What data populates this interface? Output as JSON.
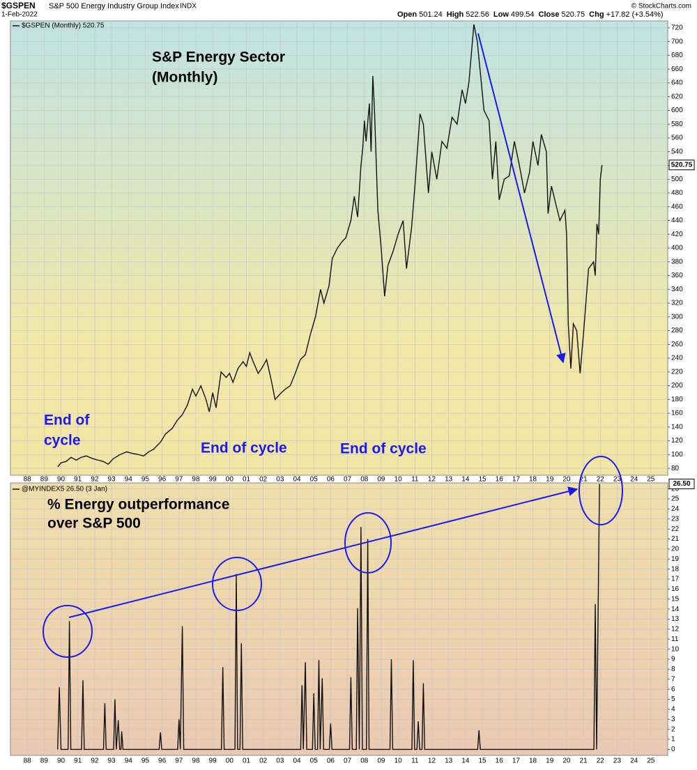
{
  "header": {
    "symbol": "$GSPEN",
    "name": "S&P 500 Energy Industry Group Index",
    "exchange": "INDX",
    "date": "1-Feb-2022",
    "quote": [
      [
        "Open",
        "501.24"
      ],
      [
        "High",
        "522.56"
      ],
      [
        "Low",
        "499.54"
      ],
      [
        "Close",
        "520.75"
      ],
      [
        "Chg",
        "+17.82 (+3.54%)"
      ]
    ],
    "credit": "© StockCharts.com"
  },
  "chart_data": [
    {
      "type": "line",
      "legend": "$GSPEN (Monthly) 520.75",
      "last_label": "520.75",
      "color": "#111111",
      "title": "S&P Energy Sector",
      "subtitle": "(Monthly)",
      "annotations": [
        "End of",
        "cycle",
        "End of cycle",
        "End of cycle"
      ],
      "xlim": [
        1987,
        2026
      ],
      "ylim": [
        70,
        730
      ],
      "grid": true,
      "xticks": [
        {
          "value": 1988,
          "label": "88"
        },
        {
          "value": 1989,
          "label": "89"
        },
        {
          "value": 1990,
          "label": "90"
        },
        {
          "value": 1991,
          "label": "91"
        },
        {
          "value": 1992,
          "label": "92"
        },
        {
          "value": 1993,
          "label": "93"
        },
        {
          "value": 1994,
          "label": "94"
        },
        {
          "value": 1995,
          "label": "95"
        },
        {
          "value": 1996,
          "label": "96"
        },
        {
          "value": 1997,
          "label": "97"
        },
        {
          "value": 1998,
          "label": "98"
        },
        {
          "value": 1999,
          "label": "99"
        },
        {
          "value": 2000,
          "label": "00"
        },
        {
          "value": 2001,
          "label": "01"
        },
        {
          "value": 2002,
          "label": "02"
        },
        {
          "value": 2003,
          "label": "03"
        },
        {
          "value": 2004,
          "label": "04"
        },
        {
          "value": 2005,
          "label": "05"
        },
        {
          "value": 2006,
          "label": "06"
        },
        {
          "value": 2007,
          "label": "07"
        },
        {
          "value": 2008,
          "label": "08"
        },
        {
          "value": 2009,
          "label": "09"
        },
        {
          "value": 2010,
          "label": "10"
        },
        {
          "value": 2011,
          "label": "11"
        },
        {
          "value": 2012,
          "label": "12"
        },
        {
          "value": 2013,
          "label": "13"
        },
        {
          "value": 2014,
          "label": "14"
        },
        {
          "value": 2015,
          "label": "15"
        },
        {
          "value": 2016,
          "label": "16"
        },
        {
          "value": 2017,
          "label": "17"
        },
        {
          "value": 2018,
          "label": "18"
        },
        {
          "value": 2019,
          "label": "19"
        },
        {
          "value": 2020,
          "label": "20"
        },
        {
          "value": 2021,
          "label": "21"
        },
        {
          "value": 2022,
          "label": "22"
        },
        {
          "value": 2023,
          "label": "23"
        },
        {
          "value": 2024,
          "label": "24"
        },
        {
          "value": 2025,
          "label": "25"
        }
      ],
      "yticks": [
        80,
        100,
        120,
        140,
        160,
        180,
        200,
        220,
        240,
        260,
        280,
        300,
        320,
        340,
        360,
        380,
        400,
        420,
        440,
        460,
        480,
        500,
        520,
        540,
        560,
        580,
        600,
        620,
        640,
        660,
        680,
        700,
        720
      ],
      "x": [
        1989.8,
        1990.0,
        1990.3,
        1990.6,
        1990.9,
        1991.2,
        1991.5,
        1991.9,
        1992.2,
        1992.5,
        1992.8,
        1993.1,
        1993.5,
        1993.9,
        1994.2,
        1994.6,
        1994.9,
        1995.2,
        1995.5,
        1995.9,
        1996.2,
        1996.6,
        1996.9,
        1997.2,
        1997.5,
        1997.8,
        1998.0,
        1998.3,
        1998.6,
        1998.8,
        1999.0,
        1999.2,
        1999.5,
        1999.8,
        2000.0,
        2000.2,
        2000.5,
        2000.8,
        2001.0,
        2001.2,
        2001.4,
        2001.7,
        2001.9,
        2002.2,
        2002.5,
        2002.7,
        2003.0,
        2003.3,
        2003.6,
        2003.9,
        2004.2,
        2004.5,
        2004.8,
        2005.1,
        2005.4,
        2005.6,
        2005.9,
        2006.1,
        2006.4,
        2006.7,
        2006.9,
        2007.2,
        2007.4,
        2007.6,
        2007.8,
        2007.9,
        2008.0,
        2008.1,
        2008.3,
        2008.4,
        2008.5,
        2008.6,
        2008.8,
        2009.0,
        2009.2,
        2009.4,
        2009.7,
        2010.0,
        2010.3,
        2010.5,
        2010.8,
        2011.0,
        2011.3,
        2011.5,
        2011.8,
        2012.0,
        2012.3,
        2012.6,
        2012.9,
        2013.2,
        2013.5,
        2013.8,
        2014.0,
        2014.2,
        2014.5,
        2014.7,
        2014.9,
        2015.1,
        2015.4,
        2015.6,
        2015.8,
        2016.0,
        2016.3,
        2016.6,
        2016.9,
        2017.2,
        2017.5,
        2017.8,
        2018.0,
        2018.3,
        2018.5,
        2018.8,
        2018.9,
        2019.1,
        2019.4,
        2019.6,
        2019.9,
        2020.0,
        2020.1,
        2020.25,
        2020.4,
        2020.6,
        2020.8,
        2021.0,
        2021.3,
        2021.6,
        2021.7,
        2021.8,
        2021.9,
        2022.0,
        2022.1
      ],
      "values": [
        82,
        88,
        90,
        96,
        92,
        96,
        98,
        94,
        92,
        90,
        86,
        94,
        100,
        104,
        102,
        100,
        98,
        104,
        108,
        118,
        130,
        138,
        150,
        158,
        172,
        195,
        185,
        200,
        180,
        162,
        190,
        168,
        220,
        212,
        218,
        205,
        225,
        235,
        228,
        248,
        235,
        218,
        225,
        238,
        205,
        180,
        188,
        195,
        200,
        218,
        238,
        245,
        275,
        300,
        340,
        320,
        345,
        385,
        400,
        410,
        415,
        440,
        475,
        445,
        520,
        545,
        585,
        555,
        610,
        540,
        650,
        600,
        455,
        400,
        330,
        375,
        395,
        420,
        440,
        370,
        430,
        490,
        595,
        580,
        480,
        540,
        500,
        555,
        545,
        590,
        580,
        630,
        610,
        640,
        725,
        700,
        650,
        600,
        585,
        500,
        555,
        470,
        500,
        505,
        555,
        520,
        480,
        510,
        555,
        520,
        565,
        540,
        450,
        490,
        460,
        440,
        455,
        420,
        290,
        225,
        290,
        280,
        218,
        275,
        370,
        380,
        360,
        435,
        420,
        500,
        520.75
      ]
    },
    {
      "type": "line",
      "legend": "@MYINDEX5 26.50 (3 Jan)",
      "last_label": "26.50",
      "color": "#111111",
      "title": "% Energy outperformance",
      "subtitle": "over S&P 500",
      "xlim": [
        1987,
        2026
      ],
      "ylim": [
        -0.6,
        26.6
      ],
      "grid": true,
      "xticks": [
        {
          "value": 1988,
          "label": "88"
        },
        {
          "value": 1989,
          "label": "89"
        },
        {
          "value": 1990,
          "label": "90"
        },
        {
          "value": 1991,
          "label": "91"
        },
        {
          "value": 1992,
          "label": "92"
        },
        {
          "value": 1993,
          "label": "93"
        },
        {
          "value": 1994,
          "label": "94"
        },
        {
          "value": 1995,
          "label": "95"
        },
        {
          "value": 1996,
          "label": "96"
        },
        {
          "value": 1997,
          "label": "97"
        },
        {
          "value": 1998,
          "label": "98"
        },
        {
          "value": 1999,
          "label": "99"
        },
        {
          "value": 2000,
          "label": "00"
        },
        {
          "value": 2001,
          "label": "01"
        },
        {
          "value": 2002,
          "label": "02"
        },
        {
          "value": 2003,
          "label": "03"
        },
        {
          "value": 2004,
          "label": "04"
        },
        {
          "value": 2005,
          "label": "05"
        },
        {
          "value": 2006,
          "label": "06"
        },
        {
          "value": 2007,
          "label": "07"
        },
        {
          "value": 2008,
          "label": "08"
        },
        {
          "value": 2009,
          "label": "09"
        },
        {
          "value": 2010,
          "label": "10"
        },
        {
          "value": 2011,
          "label": "11"
        },
        {
          "value": 2012,
          "label": "12"
        },
        {
          "value": 2013,
          "label": "13"
        },
        {
          "value": 2014,
          "label": "14"
        },
        {
          "value": 2015,
          "label": "15"
        },
        {
          "value": 2016,
          "label": "16"
        },
        {
          "value": 2017,
          "label": "17"
        },
        {
          "value": 2018,
          "label": "18"
        },
        {
          "value": 2019,
          "label": "19"
        },
        {
          "value": 2020,
          "label": "20"
        },
        {
          "value": 2021,
          "label": "21"
        },
        {
          "value": 2022,
          "label": "22"
        },
        {
          "value": 2023,
          "label": "23"
        },
        {
          "value": 2024,
          "label": "24"
        },
        {
          "value": 2025,
          "label": "25"
        }
      ],
      "yticks": [
        0,
        1,
        2,
        3,
        4,
        5,
        6,
        7,
        8,
        9,
        10,
        11,
        12,
        13,
        14,
        15,
        16,
        17,
        18,
        19,
        20,
        21,
        22,
        23,
        24,
        25,
        26
      ],
      "x": [
        1989.8,
        1989.9,
        1990.0,
        1990.42,
        1990.5,
        1990.58,
        1991.22,
        1991.3,
        1991.38,
        1992.52,
        1992.6,
        1992.68,
        1993.12,
        1993.2,
        1993.28,
        1993.4,
        1993.48,
        1993.56,
        1993.6,
        1993.68,
        1995.82,
        1995.9,
        1995.98,
        1996.92,
        1997.0,
        1997.08,
        1997.2,
        1997.28,
        1999.52,
        1999.6,
        1999.68,
        2000.32,
        2000.4,
        2000.48,
        2000.62,
        2000.7,
        2000.78,
        2004.22,
        2004.3,
        2004.38,
        2004.5,
        2004.58,
        2004.92,
        2005.0,
        2005.08,
        2005.22,
        2005.3,
        2005.38,
        2005.5,
        2005.58,
        2005.92,
        2006.0,
        2006.08,
        2007.12,
        2007.2,
        2007.28,
        2007.52,
        2007.6,
        2007.7,
        2007.8,
        2007.88,
        2008.12,
        2008.2,
        2008.28,
        2009.52,
        2009.6,
        2009.68,
        2010.82,
        2010.9,
        2010.98,
        2011.12,
        2011.2,
        2011.28,
        2011.42,
        2011.5,
        2011.58,
        2014.72,
        2014.8,
        2014.88,
        2021.62,
        2021.7,
        2021.78,
        2021.95
      ],
      "values": [
        0,
        6.2,
        0,
        0,
        12.8,
        0,
        0,
        6.9,
        0,
        0,
        4.6,
        0,
        0,
        5.0,
        0,
        2.9,
        0,
        0,
        1.8,
        0,
        0,
        1.7,
        0,
        0,
        3.0,
        0,
        12.3,
        0,
        0,
        8.2,
        0,
        0,
        17.5,
        0,
        0,
        10.6,
        0,
        0,
        6.4,
        0,
        8.7,
        0,
        0,
        5.6,
        0,
        0,
        8.9,
        0,
        7.1,
        0,
        0,
        2.6,
        0,
        0,
        7.2,
        0,
        0,
        14.1,
        0,
        22.2,
        0,
        0,
        21.0,
        0,
        0,
        9.0,
        0,
        0,
        8.9,
        0,
        0,
        2.8,
        0,
        0,
        6.6,
        0,
        0,
        1.9,
        0,
        0,
        14.5,
        0,
        26.5
      ]
    }
  ]
}
